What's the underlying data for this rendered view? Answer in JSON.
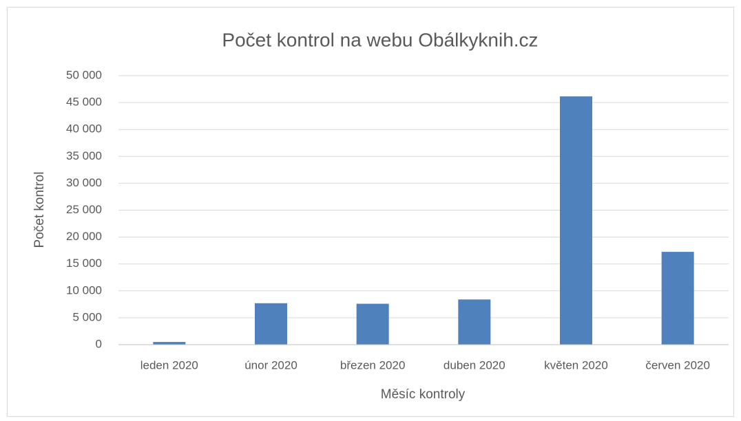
{
  "chart_data": {
    "type": "bar",
    "title": "Počet kontrol na webu Obálkyknih.cz",
    "x_label": "Měsíc kontroly",
    "y_label": "Počet kontrol",
    "categories": [
      "leden 2020",
      "únor 2020",
      "březen 2020",
      "duben 2020",
      "květen 2020",
      "červen 2020"
    ],
    "values": [
      500,
      7700,
      7600,
      8400,
      46150,
      17250
    ],
    "color": "#4f81bd",
    "ylim": [
      0,
      50000
    ],
    "yticks": [
      {
        "value": 0,
        "label": "0"
      },
      {
        "value": 5000,
        "label": "5 000"
      },
      {
        "value": 10000,
        "label": "10 000"
      },
      {
        "value": 15000,
        "label": "15 000"
      },
      {
        "value": 20000,
        "label": "20 000"
      },
      {
        "value": 25000,
        "label": "25 000"
      },
      {
        "value": 30000,
        "label": "30 000"
      },
      {
        "value": 35000,
        "label": "35 000"
      },
      {
        "value": 40000,
        "label": "40 000"
      },
      {
        "value": 45000,
        "label": "45 000"
      },
      {
        "value": 50000,
        "label": "50 000"
      }
    ],
    "grid": true
  }
}
